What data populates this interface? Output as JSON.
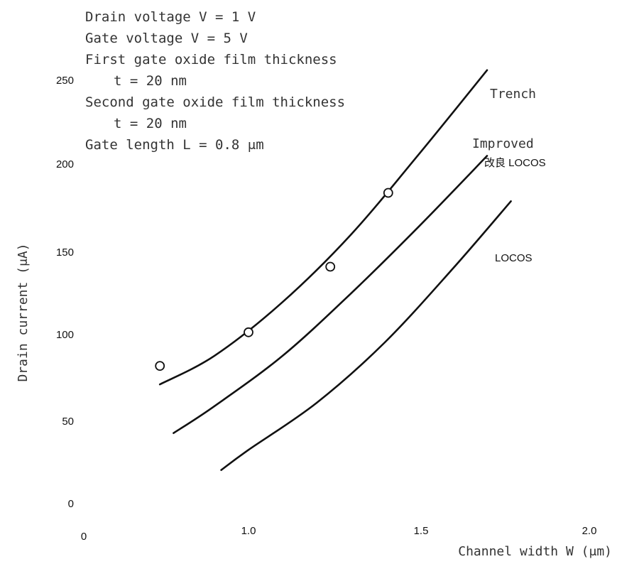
{
  "chart_data": {
    "type": "line",
    "xlabel": "Channel width W (μm)",
    "ylabel": "Drain current (μA)",
    "x_ticks": [
      "0",
      "1.0",
      "1.5",
      "2.0"
    ],
    "y_ticks": [
      "0",
      "50",
      "100",
      "150",
      "200",
      "250"
    ],
    "x_origin_label": "0",
    "xlim": [
      0.5,
      2.0
    ],
    "ylim": [
      0,
      250
    ],
    "annotation_lines": [
      "Drain voltage V  = 1 V",
      "Gate voltage V  = 5 V",
      "First gate oxide film thickness",
      "t    = 20 nm",
      "Second gate oxide film thickness",
      "t    = 20 nm",
      "Gate length L = 0.8 μm"
    ],
    "series": [
      {
        "name": "Trench",
        "x": [
          0.74,
          0.9,
          1.1,
          1.3,
          1.5,
          1.7
        ],
        "y": [
          71,
          88,
          120,
          160,
          208,
          258
        ]
      },
      {
        "name": "Improved 改良 LOCOS",
        "x": [
          0.78,
          0.9,
          1.1,
          1.3,
          1.5,
          1.7
        ],
        "y": [
          42,
          58,
          88,
          125,
          165,
          207
        ]
      },
      {
        "name": "LOCOS",
        "x": [
          0.92,
          1.0,
          1.2,
          1.4,
          1.6,
          1.77
        ],
        "y": [
          20,
          32,
          60,
          96,
          140,
          180
        ]
      }
    ],
    "measured_points": {
      "x": [
        0.74,
        1.0,
        1.24,
        1.41
      ],
      "y": [
        82,
        102,
        141,
        185
      ]
    },
    "grid": false
  }
}
